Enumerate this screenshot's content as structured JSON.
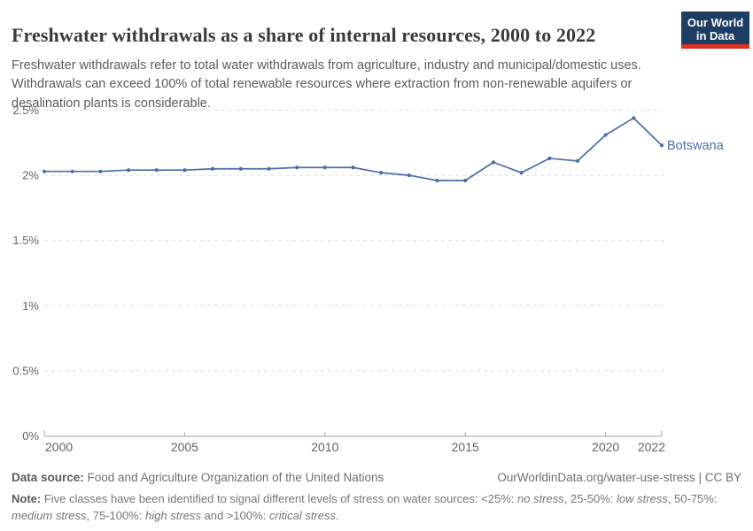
{
  "header": {
    "title": "Freshwater withdrawals as a share of internal resources, 2000 to 2022",
    "subtitle": "Freshwater withdrawals refer to total water withdrawals from agriculture, industry and municipal/domestic uses.\nWithdrawals can exceed 100% of total renewable resources where extraction from non-renewable aquifers or\ndesalination plants is considerable."
  },
  "logo": {
    "line1": "Our World",
    "line2": "in Data"
  },
  "colors": {
    "line": "#4C6CA8",
    "logo_bg": "#1D3D63",
    "logo_stripe": "#E0301E",
    "grid": "#DADADA",
    "axis": "#A1A1A1",
    "tick_text": "#636363"
  },
  "chart_data": {
    "type": "line",
    "title": "Freshwater withdrawals as a share of internal resources, 2000 to 2022",
    "xlabel": "",
    "ylabel": "",
    "unit": "%",
    "x": [
      2000,
      2001,
      2002,
      2003,
      2004,
      2005,
      2006,
      2007,
      2008,
      2009,
      2010,
      2011,
      2012,
      2013,
      2014,
      2015,
      2016,
      2017,
      2018,
      2019,
      2020,
      2021,
      2022
    ],
    "series": [
      {
        "name": "Botswana",
        "values": [
          2.03,
          2.03,
          2.03,
          2.04,
          2.04,
          2.04,
          2.05,
          2.05,
          2.05,
          2.06,
          2.06,
          2.06,
          2.02,
          2.0,
          1.96,
          1.96,
          2.1,
          2.02,
          2.13,
          2.11,
          2.31,
          2.44,
          2.23
        ]
      }
    ],
    "xlim": [
      2000,
      2022
    ],
    "ylim": [
      0,
      2.5
    ],
    "y_ticks": [
      {
        "value": 0,
        "label": "0%"
      },
      {
        "value": 0.5,
        "label": "0.5%"
      },
      {
        "value": 1,
        "label": "1%"
      },
      {
        "value": 1.5,
        "label": "1.5%"
      },
      {
        "value": 2,
        "label": "2%"
      },
      {
        "value": 2.5,
        "label": "2.5%"
      }
    ],
    "x_ticks": [
      {
        "value": 2000,
        "label": "2000",
        "anchor": "start"
      },
      {
        "value": 2005,
        "label": "2005",
        "anchor": "middle"
      },
      {
        "value": 2010,
        "label": "2010",
        "anchor": "middle"
      },
      {
        "value": 2015,
        "label": "2015",
        "anchor": "middle"
      },
      {
        "value": 2020,
        "label": "2020",
        "anchor": "middle"
      },
      {
        "value": 2022,
        "label": "2022",
        "anchor": "end"
      }
    ],
    "grid": "horizontal-dashed",
    "legend_position": "end-of-line",
    "line_color": "#4C6CA8"
  },
  "footer": {
    "datasource_label": "Data source:",
    "datasource_text": " Food and Agriculture Organization of the United Nations",
    "link": "OurWorldinData.org/water-use-stress | CC BY",
    "note_label": "Note: ",
    "note_parts": [
      {
        "text": "Five classes have been identified to signal different levels of stress on water sources: <25%: ",
        "italic": false
      },
      {
        "text": "no stress",
        "italic": true
      },
      {
        "text": ", 25-50%: ",
        "italic": false
      },
      {
        "text": "low stress",
        "italic": true
      },
      {
        "text": ", 50-75%: ",
        "italic": false
      },
      {
        "text": "medium stress",
        "italic": true
      },
      {
        "text": ", 75-100%: ",
        "italic": false
      },
      {
        "text": "high stress",
        "italic": true
      },
      {
        "text": " and >100%: ",
        "italic": false
      },
      {
        "text": "critical stress",
        "italic": true
      },
      {
        "text": ".",
        "italic": false
      }
    ]
  }
}
